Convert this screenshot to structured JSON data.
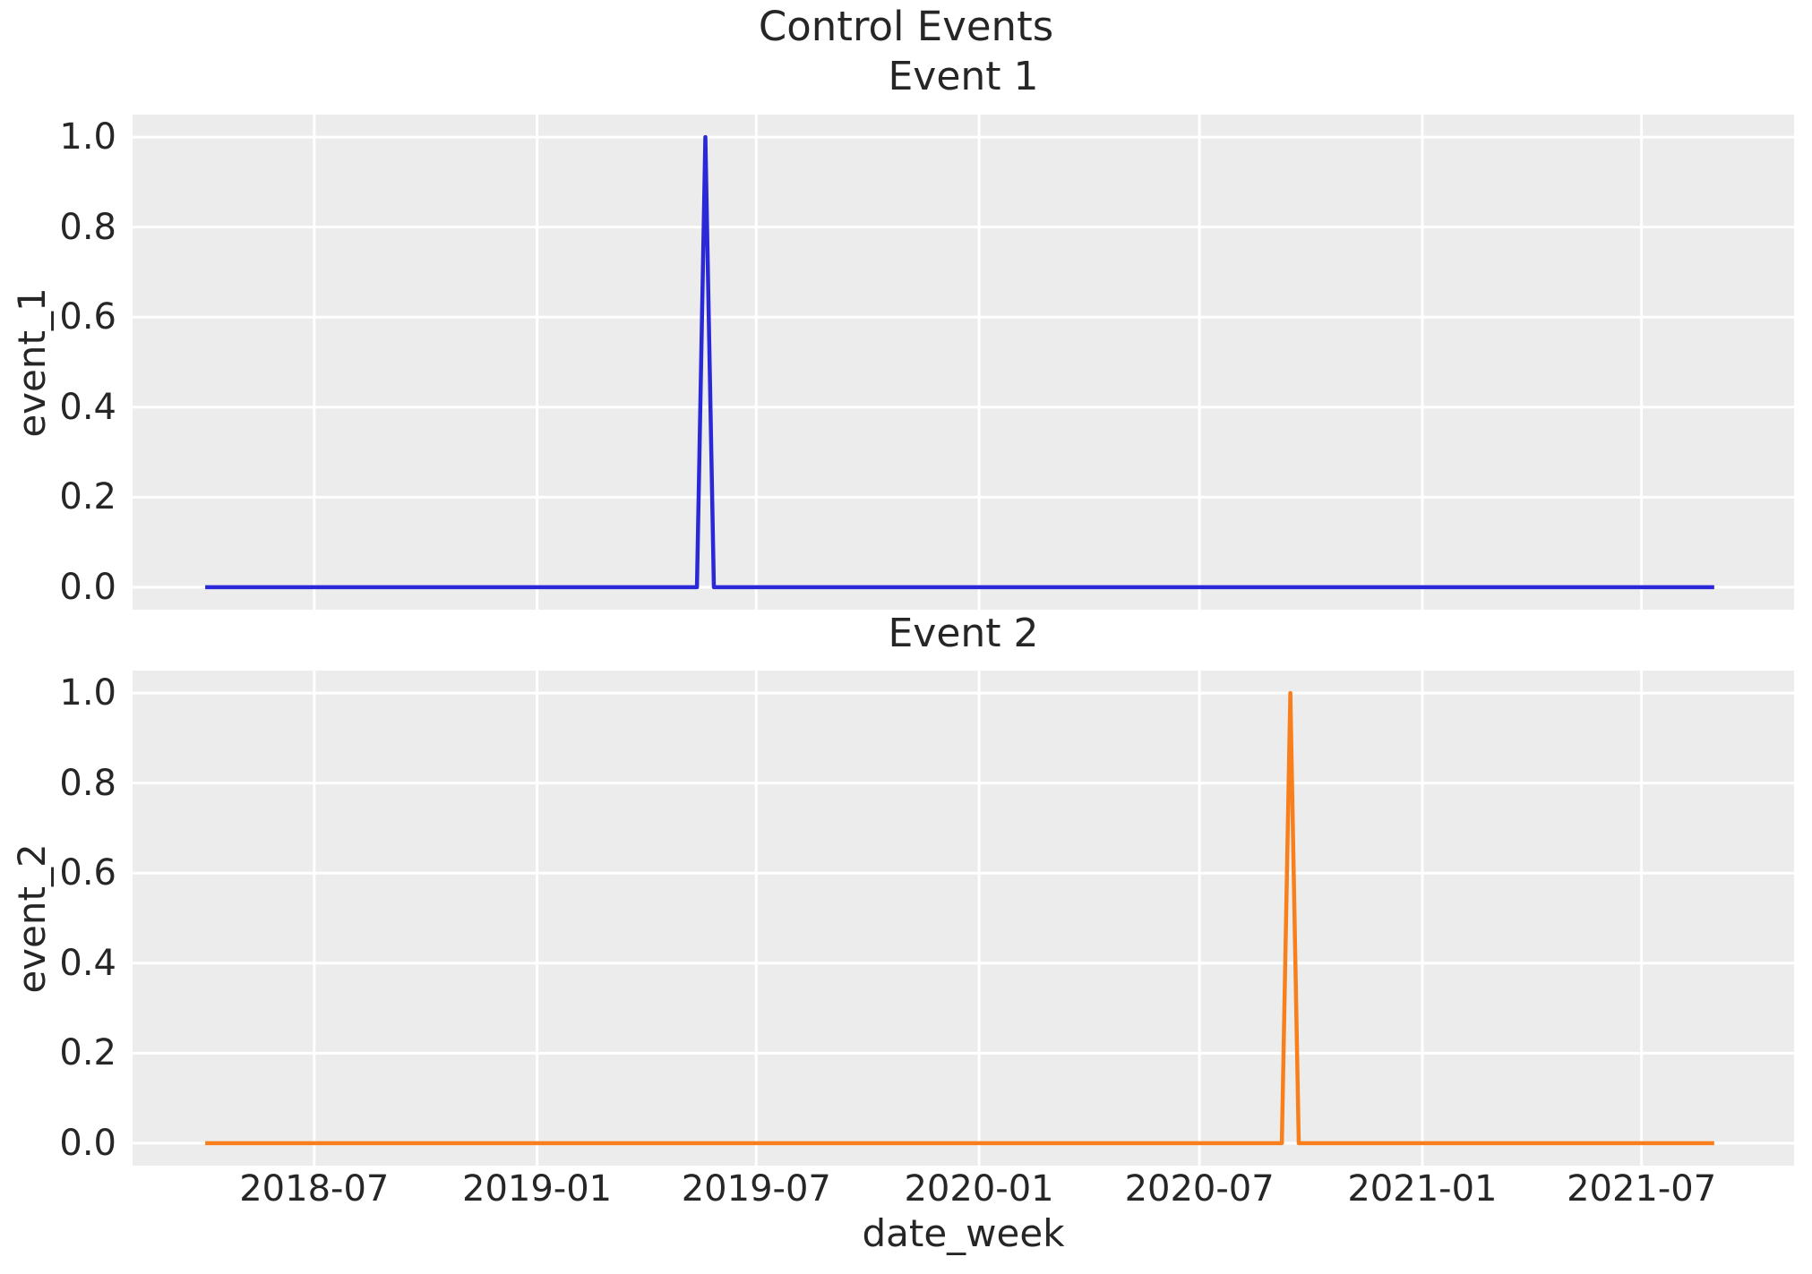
{
  "figure": {
    "suptitle": "Control Events",
    "xlabel": "date_week",
    "background_color": "#ffffff",
    "axes_background_color": "#ececec",
    "gridline_color": "#ffffff",
    "text_color": "#262626"
  },
  "chart_data": [
    {
      "type": "line",
      "title": "Event 1",
      "ylabel": "event_1",
      "line_color": "#2a28d7",
      "line_width": 4.5,
      "grid": true,
      "legend": "none",
      "frequency": "weekly",
      "x_start": "2018-04-02",
      "x_end": "2021-08-30",
      "baseline_value": 0,
      "spikes": [
        {
          "date": "2019-05-20",
          "value": 1.0
        }
      ],
      "xlim": [
        "2018-02-01",
        "2021-11-04"
      ],
      "ylim": [
        -0.05,
        1.05
      ],
      "yticks": [
        0.0,
        0.2,
        0.4,
        0.6,
        0.8,
        1.0
      ],
      "ytick_labels": [
        "0.0",
        "0.2",
        "0.4",
        "0.6",
        "0.8",
        "1.0"
      ],
      "xticks": [
        {
          "label": "2018-07",
          "date": "2018-07-01"
        },
        {
          "label": "2019-01",
          "date": "2019-01-01"
        },
        {
          "label": "2019-07",
          "date": "2019-07-01"
        },
        {
          "label": "2020-01",
          "date": "2020-01-01"
        },
        {
          "label": "2020-07",
          "date": "2020-07-01"
        },
        {
          "label": "2021-01",
          "date": "2021-01-01"
        },
        {
          "label": "2021-07",
          "date": "2021-07-01"
        }
      ],
      "x_tick_labels_visible": false
    },
    {
      "type": "line",
      "title": "Event 2",
      "ylabel": "event_2",
      "line_color": "#f87f1c",
      "line_width": 4.5,
      "grid": true,
      "legend": "none",
      "frequency": "weekly",
      "x_start": "2018-04-02",
      "x_end": "2021-08-30",
      "baseline_value": 0,
      "spikes": [
        {
          "date": "2020-09-14",
          "value": 1.0
        }
      ],
      "xlim": [
        "2018-02-01",
        "2021-11-04"
      ],
      "ylim": [
        -0.05,
        1.05
      ],
      "yticks": [
        0.0,
        0.2,
        0.4,
        0.6,
        0.8,
        1.0
      ],
      "ytick_labels": [
        "0.0",
        "0.2",
        "0.4",
        "0.6",
        "0.8",
        "1.0"
      ],
      "xticks": [
        {
          "label": "2018-07",
          "date": "2018-07-01"
        },
        {
          "label": "2019-01",
          "date": "2019-01-01"
        },
        {
          "label": "2019-07",
          "date": "2019-07-01"
        },
        {
          "label": "2020-01",
          "date": "2020-01-01"
        },
        {
          "label": "2020-07",
          "date": "2020-07-01"
        },
        {
          "label": "2021-01",
          "date": "2021-01-01"
        },
        {
          "label": "2021-07",
          "date": "2021-07-01"
        }
      ],
      "x_tick_labels_visible": true
    }
  ]
}
